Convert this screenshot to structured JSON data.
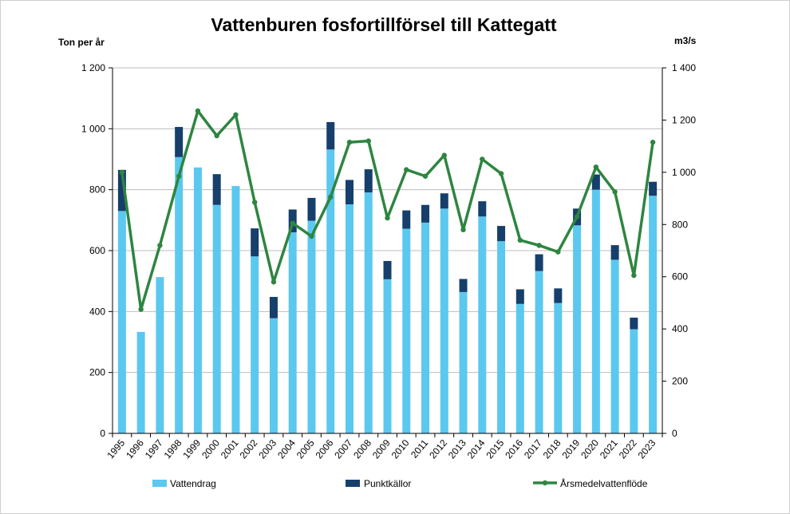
{
  "chart_data": {
    "type": "bar",
    "title": "Vattenburen fosfortillförsel till Kattegatt",
    "ylabel_left": "Ton per år",
    "ylabel_right": "m3/s",
    "ylim_left": [
      0,
      1200
    ],
    "ylim_right": [
      0,
      1400
    ],
    "yticks_left": [
      "0",
      "200",
      "400",
      "600",
      "800",
      "1 000",
      "1 200"
    ],
    "yticks_right": [
      "0",
      "200",
      "400",
      "600",
      "800",
      "1 000",
      "1 200",
      "1 400"
    ],
    "grid": true,
    "legend_position": "bottom",
    "categories": [
      "1995",
      "1996",
      "1997",
      "1998",
      "1999",
      "2000",
      "2001",
      "2002",
      "2003",
      "2004",
      "2005",
      "2006",
      "2007",
      "2008",
      "2009",
      "2010",
      "2011",
      "2012",
      "2013",
      "2014",
      "2015",
      "2016",
      "2017",
      "2018",
      "2019",
      "2020",
      "2021",
      "2022",
      "2023"
    ],
    "series": [
      {
        "name": "Vattendrag",
        "kind": "stacked-bar",
        "axis": "left",
        "color": "#5bc8ef",
        "values": [
          730,
          333,
          513,
          907,
          873,
          750,
          812,
          581,
          378,
          660,
          698,
          932,
          752,
          791,
          506,
          672,
          692,
          738,
          464,
          712,
          631,
          425,
          533,
          428,
          683,
          800,
          570,
          342,
          780
        ]
      },
      {
        "name": "Punktkällor",
        "kind": "stacked-bar",
        "axis": "left",
        "color": "#163f6b",
        "values": [
          135,
          0,
          0,
          99,
          0,
          101,
          0,
          92,
          70,
          75,
          75,
          90,
          80,
          76,
          60,
          60,
          58,
          50,
          43,
          50,
          50,
          48,
          55,
          48,
          55,
          50,
          48,
          38,
          46
        ]
      },
      {
        "name": "Årsmedelvattenflöde",
        "kind": "line",
        "axis": "right",
        "color": "#2e8540",
        "values": [
          1000,
          475,
          720,
          985,
          1235,
          1140,
          1220,
          885,
          580,
          805,
          755,
          905,
          1115,
          1120,
          825,
          1010,
          985,
          1065,
          780,
          1050,
          995,
          740,
          720,
          695,
          830,
          1020,
          925,
          605,
          1115
        ]
      }
    ]
  }
}
